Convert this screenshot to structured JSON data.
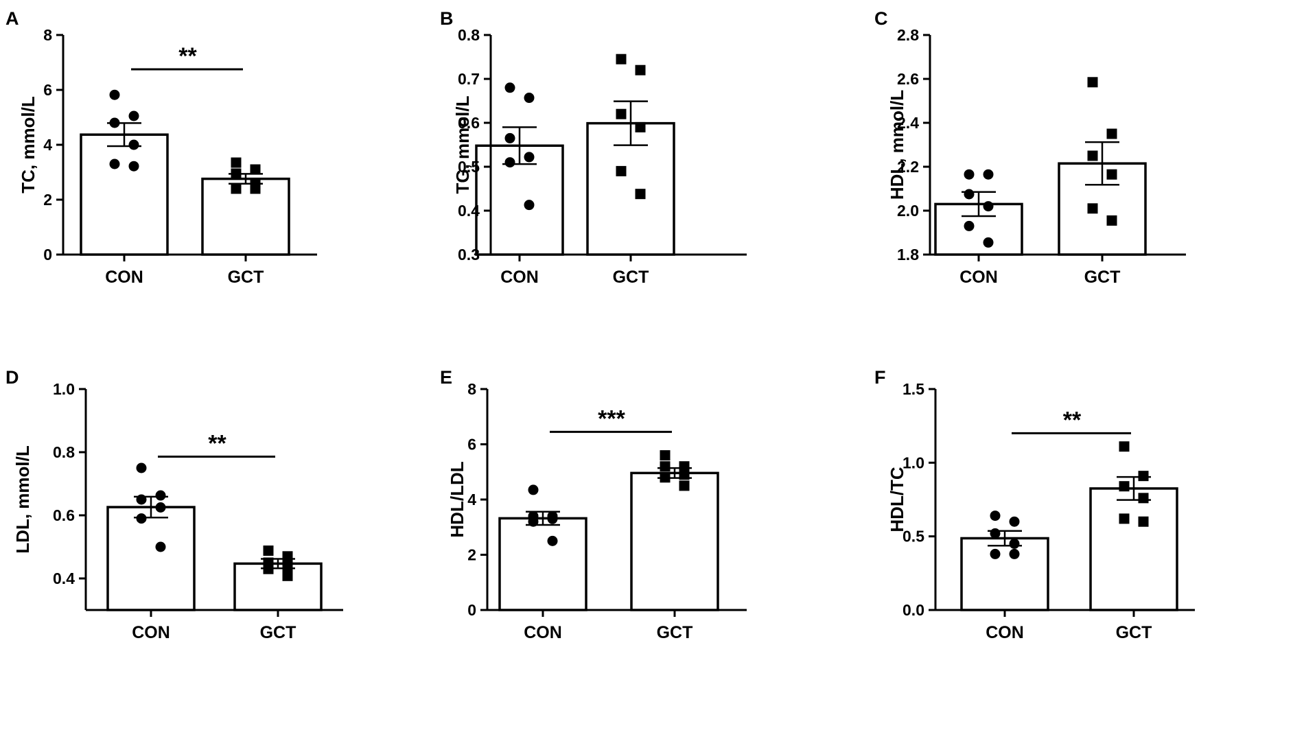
{
  "figure": {
    "panels_count": 6,
    "colors": {
      "ink": "#000000",
      "bar_fill": "#ffffff",
      "background": "#ffffff"
    }
  },
  "chart_data": [
    {
      "type": "bar",
      "letter": "A",
      "title": "",
      "xlabel": "",
      "ylabel": "TC, mmol/L",
      "categories": [
        "CON",
        "GCT"
      ],
      "ylim": [
        0,
        8
      ],
      "yticks": [
        0,
        2,
        4,
        6,
        8
      ],
      "tick_decimals": 0,
      "means": [
        4.37,
        2.76
      ],
      "sem": [
        0.42,
        0.18
      ],
      "points": [
        [
          5.82,
          5.05,
          4.8,
          4.0,
          3.3,
          3.22
        ],
        [
          3.35,
          3.1,
          2.95,
          2.6,
          2.4,
          2.4
        ]
      ],
      "markers": [
        "circle",
        "square"
      ],
      "significance": {
        "label": "**",
        "y": 6.75
      }
    },
    {
      "type": "bar",
      "letter": "B",
      "title": "",
      "xlabel": "",
      "ylabel": "TG, mmol/L",
      "categories": [
        "CON",
        "GCT"
      ],
      "ylim": [
        0.3,
        0.8
      ],
      "yticks": [
        0.3,
        0.4,
        0.5,
        0.6,
        0.7,
        0.8
      ],
      "tick_decimals": 1,
      "means": [
        0.548,
        0.599
      ],
      "sem": [
        0.042,
        0.05
      ],
      "points": [
        [
          0.68,
          0.657,
          0.565,
          0.522,
          0.51,
          0.413
        ],
        [
          0.745,
          0.72,
          0.62,
          0.59,
          0.49,
          0.438
        ]
      ],
      "markers": [
        "circle",
        "square"
      ],
      "significance": null
    },
    {
      "type": "bar",
      "letter": "C",
      "title": "",
      "xlabel": "",
      "ylabel": "HDL, mmol/L",
      "categories": [
        "CON",
        "GCT"
      ],
      "ylim": [
        1.8,
        2.8
      ],
      "yticks": [
        1.8,
        2.0,
        2.2,
        2.4,
        2.6,
        2.8
      ],
      "tick_decimals": 1,
      "means": [
        2.03,
        2.215
      ],
      "sem": [
        0.055,
        0.097
      ],
      "points": [
        [
          2.165,
          2.165,
          2.075,
          2.02,
          1.93,
          1.855
        ],
        [
          2.585,
          2.35,
          2.25,
          2.165,
          2.01,
          1.955
        ]
      ],
      "markers": [
        "circle",
        "square"
      ],
      "significance": null
    },
    {
      "type": "bar",
      "letter": "D",
      "title": "",
      "xlabel": "",
      "ylabel": "LDL, mmol/L",
      "categories": [
        "CON",
        "GCT"
      ],
      "ylim": [
        0.3,
        1.0
      ],
      "yticks": [
        0.4,
        0.6,
        0.8,
        1.0
      ],
      "tick_decimals": 1,
      "means": [
        0.626,
        0.447
      ],
      "sem": [
        0.033,
        0.015
      ],
      "points": [
        [
          0.75,
          0.663,
          0.65,
          0.625,
          0.59,
          0.5
        ],
        [
          0.488,
          0.47,
          0.45,
          0.44,
          0.43,
          0.408
        ]
      ],
      "markers": [
        "circle",
        "square"
      ],
      "significance": {
        "label": "**",
        "y": 0.786
      }
    },
    {
      "type": "bar",
      "letter": "E",
      "title": "",
      "xlabel": "",
      "ylabel": "HDL/LDL",
      "categories": [
        "CON",
        "GCT"
      ],
      "ylim": [
        0,
        8
      ],
      "yticks": [
        0,
        2,
        4,
        6,
        8
      ],
      "tick_decimals": 0,
      "means": [
        3.32,
        4.96
      ],
      "sem": [
        0.24,
        0.18
      ],
      "points": [
        [
          4.35,
          3.4,
          3.4,
          3.3,
          3.2,
          2.5
        ],
        [
          5.6,
          5.2,
          5.2,
          4.9,
          4.8,
          4.5
        ]
      ],
      "markers": [
        "circle",
        "square"
      ],
      "significance": {
        "label": "***",
        "y": 6.45
      }
    },
    {
      "type": "bar",
      "letter": "F",
      "title": "",
      "xlabel": "",
      "ylabel": "HDL/TC",
      "categories": [
        "CON",
        "GCT"
      ],
      "ylim": [
        0,
        1.5
      ],
      "yticks": [
        0.0,
        0.5,
        1.0,
        1.5
      ],
      "tick_decimals": 1,
      "means": [
        0.487,
        0.825
      ],
      "sem": [
        0.05,
        0.078
      ],
      "points": [
        [
          0.64,
          0.6,
          0.52,
          0.45,
          0.38,
          0.38
        ],
        [
          1.11,
          0.91,
          0.84,
          0.76,
          0.62,
          0.6
        ]
      ],
      "markers": [
        "circle",
        "square"
      ],
      "significance": {
        "label": "**",
        "y": 1.2
      }
    }
  ]
}
